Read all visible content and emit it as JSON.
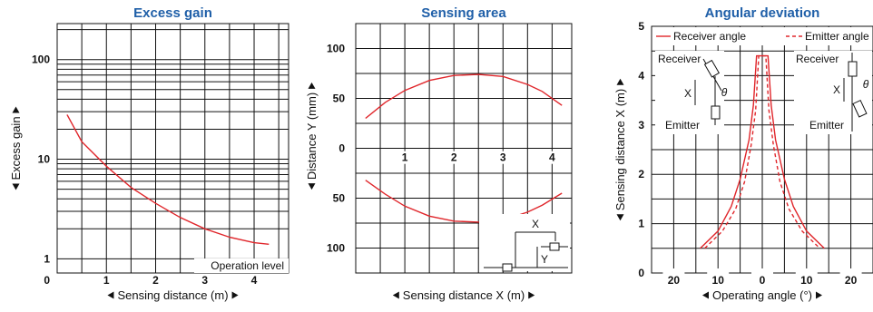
{
  "chart_data": [
    {
      "type": "line",
      "title": "Excess gain",
      "xlabel": "Sensing distance (m)",
      "ylabel": "Excess gain",
      "yscale": "log",
      "xlim": [
        0,
        4.7
      ],
      "ylim": [
        0.72,
        230
      ],
      "x_ticks": [
        "0",
        "1",
        "2",
        "3",
        "4"
      ],
      "y_ticks": [
        "1",
        "10",
        "100"
      ],
      "annotation": "Operation level",
      "series": [
        {
          "x": [
            0.2,
            0.5,
            1.0,
            1.5,
            2.0,
            2.5,
            3.0,
            3.5,
            4.0,
            4.3
          ],
          "y": [
            28,
            15,
            8.5,
            5.2,
            3.6,
            2.6,
            2.0,
            1.65,
            1.45,
            1.4
          ]
        }
      ]
    },
    {
      "type": "line",
      "title": "Sensing area",
      "xlabel": "Sensing distance X (m)",
      "ylabel": "Distance Y (mm)",
      "xlim": [
        0,
        4.4
      ],
      "ylim": [
        -125,
        125
      ],
      "x_ticks": [
        "1",
        "2",
        "3",
        "4"
      ],
      "y_ticks": [
        "100",
        "50",
        "0",
        "50",
        "100"
      ],
      "inset_labels": [
        "X",
        "Y"
      ],
      "series": [
        {
          "x": [
            0.2,
            0.6,
            1.0,
            1.5,
            2.0,
            2.5,
            3.0,
            3.5,
            3.8,
            4.2
          ],
          "y": [
            30,
            46,
            58,
            68,
            73,
            74,
            72,
            64,
            57,
            43
          ]
        },
        {
          "x": [
            0.2,
            0.6,
            1.0,
            1.5,
            2.0,
            2.5,
            3.0,
            3.5,
            3.8,
            4.2
          ],
          "y": [
            -32,
            -46,
            -58,
            -68,
            -73,
            -74,
            -72,
            -64,
            -57,
            -45
          ]
        }
      ]
    },
    {
      "type": "line",
      "title": "Angular deviation",
      "xlabel": "Operating angle (°)",
      "ylabel": "Sensing distance X (m)",
      "xlim": [
        -25,
        25
      ],
      "ylim": [
        0,
        5
      ],
      "x_ticks": [
        "20",
        "10",
        "0",
        "10",
        "20"
      ],
      "y_ticks": [
        "0",
        "1",
        "2",
        "3",
        "4",
        "5"
      ],
      "legend_position": "top",
      "inset_labels": {
        "receiver": "Receiver",
        "emitter": "Emitter",
        "x": "X",
        "theta": "θ"
      },
      "series": [
        {
          "name": "Receiver angle",
          "style": "solid",
          "x": [
            -14,
            -10,
            -7,
            -5,
            -3,
            -2,
            -1.3,
            1.3,
            2,
            3,
            5,
            7,
            10,
            14
          ],
          "y": [
            0.5,
            0.85,
            1.35,
            1.9,
            2.7,
            3.4,
            4.4,
            4.4,
            3.4,
            2.7,
            1.9,
            1.35,
            0.85,
            0.5
          ]
        },
        {
          "name": "Emitter angle",
          "style": "dashed",
          "x": [
            -13,
            -9,
            -6,
            -4,
            -2.5,
            -1.5,
            -0.8,
            0.8,
            1.5,
            2.5,
            4,
            6,
            9,
            13
          ],
          "y": [
            0.5,
            0.85,
            1.3,
            1.85,
            2.6,
            3.3,
            4.4,
            4.4,
            3.3,
            2.6,
            1.85,
            1.3,
            0.85,
            0.5
          ]
        }
      ]
    }
  ],
  "colors": {
    "title": "#1f5fa8",
    "curve": "#e0262b",
    "grid": "#111111"
  },
  "icons": [
    "left-triangle-icon",
    "right-triangle-icon",
    "up-triangle-icon",
    "sensor-icon"
  ]
}
